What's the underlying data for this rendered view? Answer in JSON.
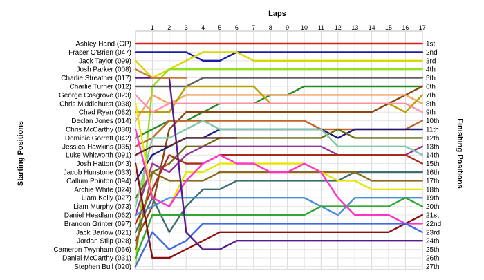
{
  "chart_data": {
    "type": "line",
    "title": "Laps",
    "ylabel_left": "Starting Positions",
    "ylabel_right": "Finishing Positions",
    "laps": [
      1,
      2,
      3,
      4,
      5,
      6,
      7,
      8,
      9,
      10,
      11,
      12,
      13,
      14,
      15,
      16,
      17
    ],
    "grid": true,
    "start_labels": [
      "Ashley Hand (GP)",
      "Fraser O'Brien (047)",
      "Jack Taylor (099)",
      "Josh Parker (008)",
      "Charlie Streather (017)",
      "Charlie Turner (012)",
      "George Cosgrove (023)",
      "Chris Middlehurst (038)",
      "Chad Ryan (082)",
      "Declan Jones (014)",
      "Chris McCarthy (030)",
      "Dominic Gorrett (042)",
      "Jessica Hawkins (035)",
      "Luke Whitworth (091)",
      "Josh Hatton (043)",
      "Jacob Hunstone (033)",
      "Callum Pointon (094)",
      "Archie White (024)",
      "Liam Kelly (027)",
      "Liam Murphy (073)",
      "Daniel Headlam (062)",
      "Brandon Grinter (097)",
      "Jack Barlow (021)",
      "Jordan Stilp (028)",
      "Cameron Twynham (066)",
      "Daniel McCarthy (031)",
      "Stephen Bull (020)"
    ],
    "finish_labels": [
      "1st",
      "2nd",
      "3rd",
      "4th",
      "5th",
      "6th",
      "7th",
      "8th",
      "9th",
      "10th",
      "11th",
      "12th",
      "13th",
      "14th",
      "15th",
      "16th",
      "17th",
      "18th",
      "19th",
      "20th",
      "21st",
      "22nd",
      "23rd",
      "24th",
      "25th",
      "26th",
      "27th"
    ],
    "series": [
      {
        "color": "#d42020",
        "start": 1,
        "positions": [
          1,
          1,
          1,
          1,
          1,
          1,
          1,
          1,
          1,
          1,
          1,
          1,
          1,
          1,
          1,
          1,
          1
        ]
      },
      {
        "color": "#1c1ca8",
        "start": 2,
        "positions": [
          2,
          2,
          2,
          3,
          3,
          2,
          2,
          2,
          2,
          2,
          2,
          2,
          2,
          2,
          2,
          2,
          2
        ]
      },
      {
        "color": "#d8d800",
        "start": 3,
        "positions": [
          5,
          4,
          3,
          2,
          2,
          2,
          3,
          3,
          3,
          3,
          3,
          3,
          3,
          3,
          3,
          3,
          3
        ]
      },
      {
        "color": "#90e020",
        "start": 27,
        "positions": [
          6,
          4,
          4,
          4,
          4,
          4,
          4,
          4,
          4,
          4,
          4,
          4,
          4,
          4,
          4,
          4,
          4
        ]
      },
      {
        "color": "#606060",
        "start": 6,
        "positions": [
          6,
          6,
          6,
          5,
          5,
          5,
          5,
          5,
          5,
          5,
          5,
          5,
          5,
          5,
          5,
          5,
          5
        ]
      },
      {
        "color": "#228b22",
        "start": 12,
        "positions": [
          11,
          10,
          10,
          9,
          8,
          8,
          8,
          7,
          7,
          6,
          6,
          6,
          6,
          6,
          6,
          6,
          6
        ]
      },
      {
        "color": "#8b4513",
        "start": 24,
        "positions": [
          20,
          11,
          9,
          9,
          9,
          9,
          9,
          9,
          9,
          9,
          9,
          9,
          9,
          9,
          8,
          7,
          6
        ]
      },
      {
        "color": "#f4a460",
        "start": 10,
        "positions": [
          7,
          8,
          7,
          7,
          7,
          7,
          7,
          7,
          7,
          7,
          7,
          7,
          7,
          7,
          7,
          7,
          8
        ]
      },
      {
        "color": "#b8a000",
        "start": 9,
        "positions": [
          9,
          9,
          6,
          6,
          6,
          6,
          6,
          8,
          8,
          8,
          8,
          8,
          8,
          8,
          8,
          9,
          7
        ]
      },
      {
        "color": "#ff8fa8",
        "start": 7,
        "positions": [
          9,
          8,
          8,
          8,
          8,
          8,
          8,
          8,
          8,
          8,
          8,
          8,
          8,
          8,
          8,
          8,
          9
        ]
      },
      {
        "color": "#c0642a",
        "start": 13,
        "positions": [
          12,
          10,
          10,
          10,
          10,
          10,
          10,
          10,
          10,
          10,
          11,
          11,
          11,
          11,
          11,
          11,
          10
        ]
      },
      {
        "color": "#1c1c80",
        "start": 17,
        "positions": [
          14,
          13,
          12,
          12,
          11,
          11,
          11,
          11,
          11,
          11,
          11,
          12,
          11,
          11,
          11,
          11,
          11
        ]
      },
      {
        "color": "#6b6b10",
        "start": 19,
        "positions": [
          16,
          15,
          13,
          13,
          12,
          12,
          12,
          12,
          12,
          12,
          12,
          11,
          12,
          12,
          12,
          12,
          12
        ]
      },
      {
        "color": "#993399",
        "start": 21,
        "positions": [
          15,
          16,
          14,
          13,
          13,
          13,
          13,
          13,
          13,
          13,
          13,
          14,
          14,
          14,
          14,
          14,
          13
        ]
      },
      {
        "color": "#7fc8a8",
        "start": 20,
        "positions": [
          12,
          12,
          11,
          10,
          11,
          11,
          11,
          11,
          11,
          11,
          11,
          13,
          13,
          13,
          13,
          13,
          14
        ]
      },
      {
        "color": "#a82a1a",
        "start": 22,
        "positions": [
          18,
          14,
          15,
          15,
          14,
          14,
          14,
          14,
          14,
          14,
          14,
          14,
          14,
          14,
          14,
          14,
          15
        ]
      },
      {
        "color": "#3c6e6e",
        "start": 23,
        "positions": [
          19,
          23,
          20,
          18,
          18,
          17,
          17,
          17,
          17,
          17,
          17,
          17,
          16,
          16,
          16,
          16,
          16
        ]
      },
      {
        "color": "#8a6a1a",
        "start": 25,
        "positions": [
          16,
          17,
          17,
          17,
          16,
          16,
          16,
          16,
          16,
          16,
          16,
          16,
          16,
          17,
          17,
          17,
          17
        ]
      },
      {
        "color": "#e6e600",
        "start": 8,
        "positions": [
          19,
          20,
          16,
          16,
          15,
          15,
          15,
          15,
          15,
          15,
          16,
          17,
          17,
          18,
          18,
          18,
          18
        ]
      },
      {
        "color": "#4a90d9",
        "start": 21,
        "positions": [
          20,
          19,
          19,
          19,
          19,
          19,
          19,
          19,
          19,
          19,
          20,
          21,
          19,
          19,
          19,
          19,
          19
        ]
      },
      {
        "color": "#2ea82e",
        "start": 26,
        "positions": [
          21,
          21,
          21,
          21,
          21,
          21,
          21,
          21,
          21,
          21,
          20,
          20,
          20,
          20,
          20,
          19,
          20
        ]
      },
      {
        "color": "#ff33cc",
        "start": 11,
        "positions": [
          19,
          20,
          17,
          15,
          14,
          15,
          15,
          16,
          16,
          15,
          16,
          19,
          21,
          21,
          21,
          22,
          22
        ]
      },
      {
        "color": "#8b1010",
        "start": 15,
        "positions": [
          26,
          26,
          25,
          24,
          23,
          23,
          23,
          23,
          23,
          23,
          23,
          23,
          23,
          23,
          23,
          22,
          21
        ]
      },
      {
        "color": "#4169e1",
        "start": 27,
        "positions": [
          23,
          25,
          24,
          22,
          22,
          22,
          22,
          22,
          22,
          22,
          22,
          22,
          22,
          22,
          22,
          22,
          23
        ]
      },
      {
        "color": "#551a8b",
        "start": 5,
        "positions": [
          5,
          5,
          23,
          25,
          25,
          24,
          24,
          24,
          24,
          24,
          24,
          24,
          24,
          24,
          24,
          24,
          24
        ]
      },
      {
        "color": "#5a2a2a",
        "start": 14,
        "positions": [
          13,
          13,
          12,
          12,
          12,
          12
        ]
      },
      {
        "color": "#c87a3a",
        "start": 4,
        "positions": [
          5,
          5,
          5
        ]
      }
    ]
  }
}
